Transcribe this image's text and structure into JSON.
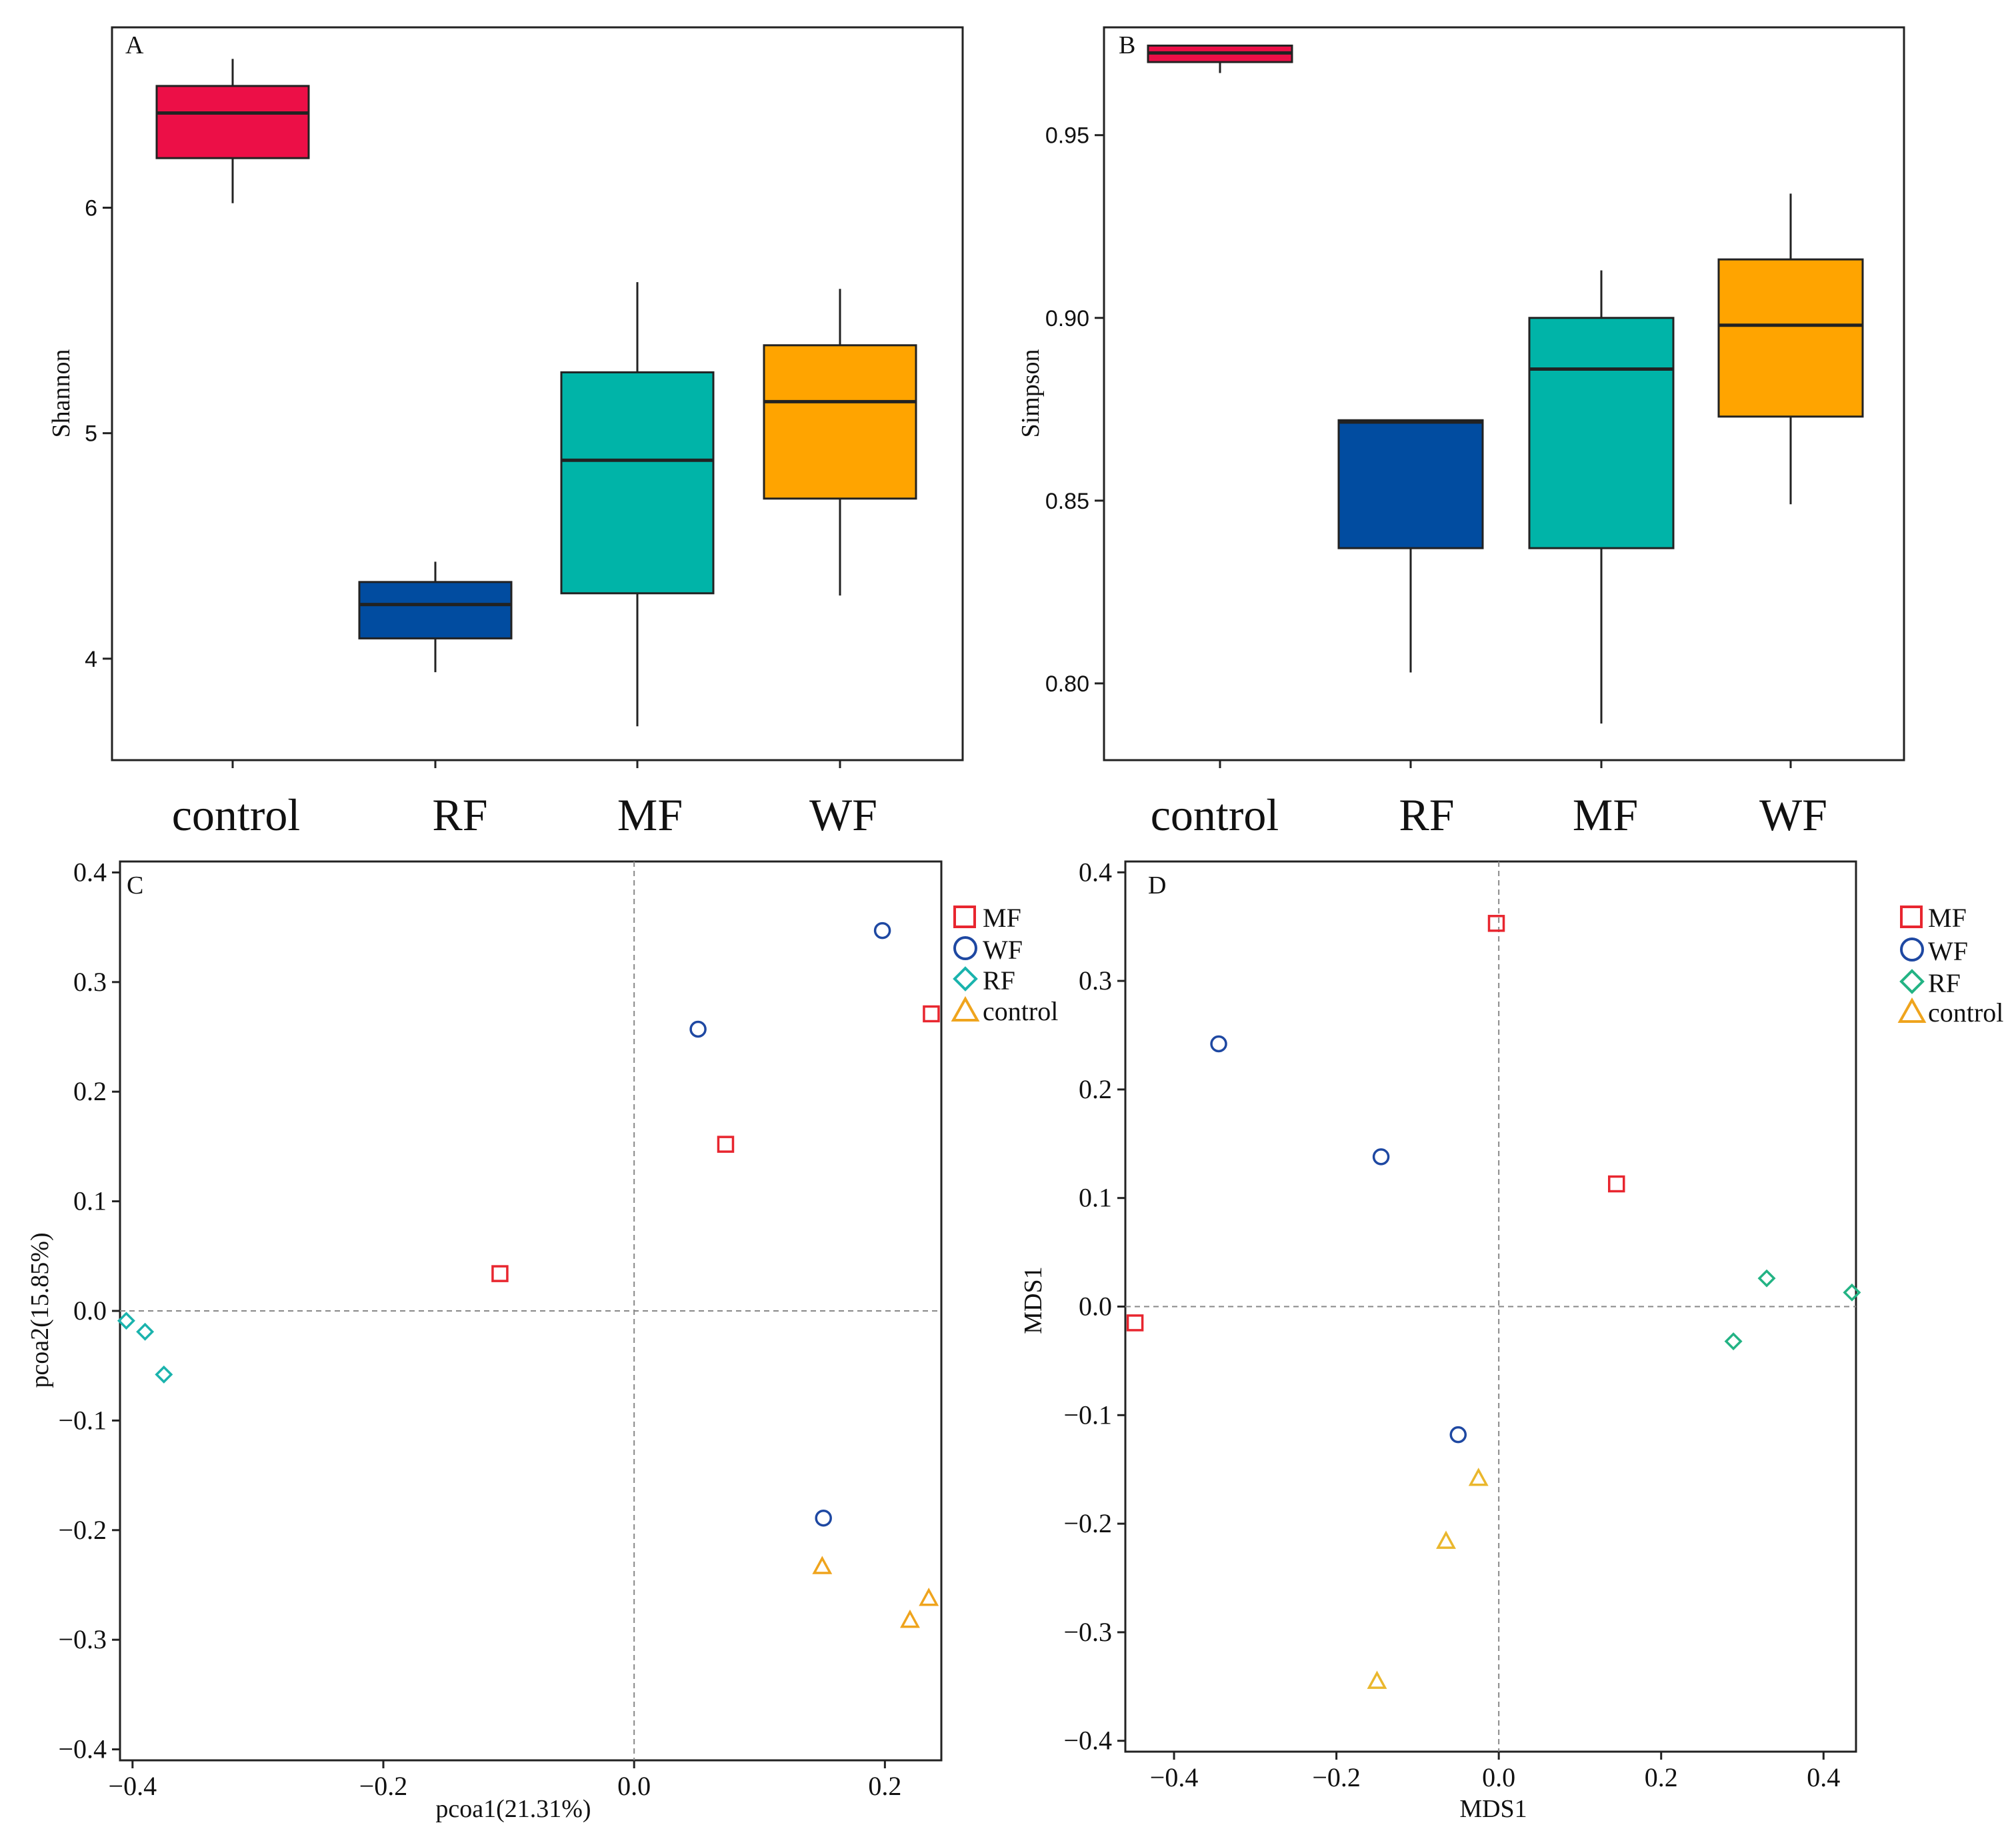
{
  "chart_data": [
    {
      "panel": "A",
      "type": "box",
      "ylabel": "Shannon",
      "categories": [
        "control",
        "RF",
        "MF",
        "WF"
      ],
      "colors": [
        "#ec0f47",
        "#014ca0",
        "#00b4a8",
        "#ffa400"
      ],
      "yticks": [
        4,
        5,
        6
      ],
      "ylim": [
        3.55,
        6.8
      ],
      "boxes": [
        {
          "min": 6.02,
          "q1": 6.22,
          "median": 6.42,
          "q3": 6.54,
          "max": 6.66
        },
        {
          "min": 3.94,
          "q1": 4.09,
          "median": 4.24,
          "q3": 4.34,
          "max": 4.43
        },
        {
          "min": 3.7,
          "q1": 4.29,
          "median": 4.88,
          "q3": 5.27,
          "max": 5.67
        },
        {
          "min": 4.28,
          "q1": 4.71,
          "median": 5.14,
          "q3": 5.39,
          "max": 5.64
        }
      ]
    },
    {
      "panel": "B",
      "type": "box",
      "ylabel": "Simpson",
      "categories": [
        "control",
        "RF",
        "MF",
        "WF"
      ],
      "colors": [
        "#ec0f47",
        "#014ca0",
        "#00b4a8",
        "#ffa400"
      ],
      "yticks": [
        "0.80",
        "0.85",
        "0.90",
        "0.95"
      ],
      "ylim": [
        0.779,
        0.9795
      ],
      "boxes": [
        {
          "min": 0.967,
          "q1": 0.97,
          "median": 0.9725,
          "q3": 0.9745,
          "max": 0.9745
        },
        {
          "min": 0.803,
          "q1": 0.837,
          "median": 0.8715,
          "q3": 0.872,
          "max": 0.872
        },
        {
          "min": 0.789,
          "q1": 0.837,
          "median": 0.886,
          "q3": 0.9,
          "max": 0.913
        },
        {
          "min": 0.849,
          "q1": 0.873,
          "median": 0.898,
          "q3": 0.916,
          "max": 0.934
        }
      ]
    },
    {
      "panel": "C",
      "type": "scatter",
      "xlabel": "pcoa1(21.31%)",
      "ylabel": "pcoa2(15.85%)",
      "xlim": [
        -0.41,
        0.245
      ],
      "ylim": [
        -0.41,
        0.41
      ],
      "xticks": [
        "−0.4",
        "−0.2",
        "0.0",
        "0.2"
      ],
      "yticks": [
        "0.4",
        "0.3",
        "0.2",
        "0.1",
        "0.0",
        "−0.1",
        "−0.2",
        "−0.3",
        "−0.4"
      ],
      "legend": [
        "MF",
        "WF",
        "RF",
        "control"
      ],
      "series": [
        {
          "name": "MF",
          "marker": "square",
          "color": "#e8262f",
          "points": [
            [
              -0.107,
              0.034
            ],
            [
              0.073,
              0.152
            ],
            [
              0.237,
              0.271
            ]
          ]
        },
        {
          "name": "WF",
          "marker": "circle",
          "color": "#1e48a2",
          "points": [
            [
              0.051,
              0.257
            ],
            [
              0.198,
              0.347
            ],
            [
              0.151,
              -0.189
            ]
          ]
        },
        {
          "name": "RF",
          "marker": "diamond",
          "color": "#1ab3ad",
          "points": [
            [
              -0.405,
              -0.009
            ],
            [
              -0.39,
              -0.019
            ],
            [
              -0.375,
              -0.058
            ]
          ]
        },
        {
          "name": "control",
          "marker": "triangle",
          "color": "#efa41d",
          "points": [
            [
              0.15,
              -0.233
            ],
            [
              0.235,
              -0.262
            ],
            [
              0.22,
              -0.282
            ]
          ]
        }
      ]
    },
    {
      "panel": "D",
      "type": "scatter",
      "xlabel": "MDS1",
      "ylabel": "MDS1",
      "xlim": [
        -0.46,
        0.44
      ],
      "ylim": [
        -0.41,
        0.41
      ],
      "xticks": [
        "−0.4",
        "−0.2",
        "0.0",
        "0.2",
        "0.4"
      ],
      "yticks": [
        "0.4",
        "0.3",
        "0.2",
        "0.1",
        "0.0",
        "−0.1",
        "−0.2",
        "−0.3",
        "−0.4"
      ],
      "legend": [
        "MF",
        "WF",
        "RF",
        "control"
      ],
      "series": [
        {
          "name": "MF",
          "marker": "square",
          "color": "#e8262f",
          "points": [
            [
              -0.003,
              0.353
            ],
            [
              0.145,
              0.113
            ],
            [
              -0.448,
              -0.015
            ]
          ]
        },
        {
          "name": "WF",
          "marker": "circle",
          "color": "#1e48a2",
          "points": [
            [
              -0.345,
              0.242
            ],
            [
              -0.145,
              0.138
            ],
            [
              -0.05,
              -0.118
            ]
          ]
        },
        {
          "name": "RF",
          "marker": "diamond",
          "color": "#23b384",
          "points": [
            [
              0.33,
              0.026
            ],
            [
              0.435,
              0.013
            ],
            [
              0.289,
              -0.032
            ]
          ]
        },
        {
          "name": "control",
          "marker": "triangle",
          "color": "#eab72d",
          "points": [
            [
              -0.025,
              -0.158
            ],
            [
              -0.065,
              -0.216
            ],
            [
              -0.15,
              -0.345
            ]
          ]
        }
      ]
    }
  ]
}
